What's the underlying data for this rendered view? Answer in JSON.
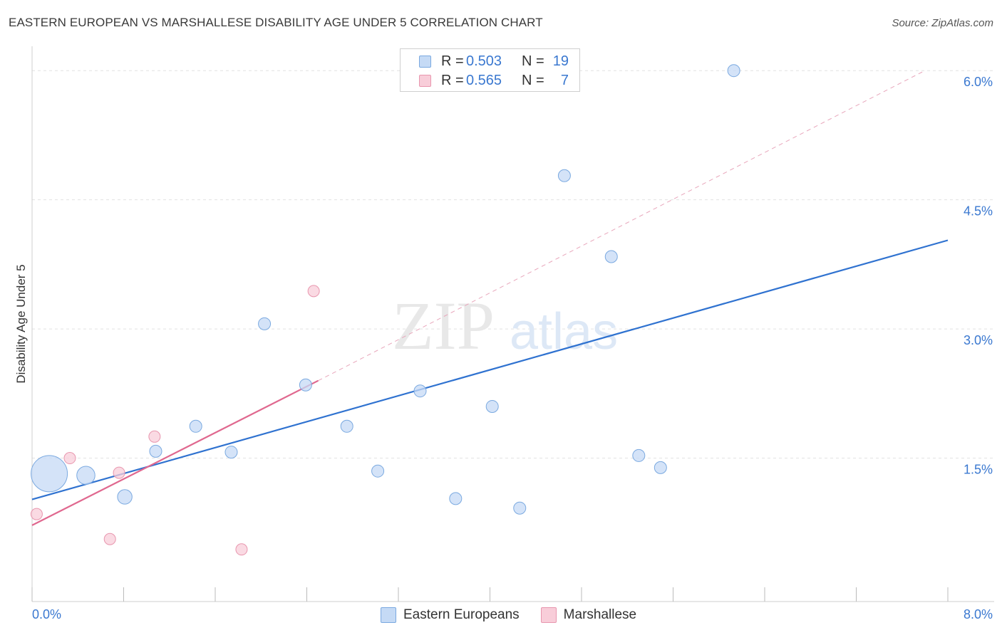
{
  "title": "EASTERN EUROPEAN VS MARSHALLESE DISABILITY AGE UNDER 5 CORRELATION CHART",
  "source": "Source: ZipAtlas.com",
  "watermark": {
    "part1": "ZIP",
    "part2": "atlas"
  },
  "legend_top": [
    {
      "r_label": "R =",
      "r_value": "0.503",
      "n_label": "N =",
      "n_value": "19"
    },
    {
      "r_label": "R =",
      "r_value": "0.565",
      "n_label": "N =",
      "n_value": "7"
    }
  ],
  "legend_bottom": [
    {
      "label": "Eastern Europeans"
    },
    {
      "label": "Marshallese"
    }
  ],
  "colors": {
    "blue_fill": "#c5daf5",
    "blue_stroke": "#7aa9e0",
    "blue_line": "#2f72d0",
    "pink_fill": "#f8cdd9",
    "pink_stroke": "#e896ae",
    "pink_line": "#e0688f",
    "tick_text": "#3a78d0",
    "grid": "#e2e2e2"
  },
  "chart_data": {
    "type": "scatter",
    "title": "EASTERN EUROPEAN VS MARSHALLESE DISABILITY AGE UNDER 5 CORRELATION CHART",
    "xlabel": "",
    "ylabel": "Disability Age Under 5",
    "xlim": [
      0,
      8
    ],
    "ylim": [
      0,
      6.2
    ],
    "x_tick_labels": [
      "0.0%",
      "8.0%"
    ],
    "y_ticks": [
      1.5,
      3.0,
      4.5,
      6.0
    ],
    "y_tick_labels": [
      "1.5%",
      "3.0%",
      "4.5%",
      "6.0%"
    ],
    "grid": true,
    "legend_position": "top-center",
    "series": [
      {
        "name": "Eastern Europeans",
        "points": [
          {
            "x": 0.15,
            "y": 1.32,
            "size": 3
          },
          {
            "x": 0.47,
            "y": 1.3,
            "size": 1.5
          },
          {
            "x": 0.81,
            "y": 1.05,
            "size": 1.2
          },
          {
            "x": 1.08,
            "y": 1.58,
            "size": 1
          },
          {
            "x": 1.43,
            "y": 1.87,
            "size": 1
          },
          {
            "x": 1.74,
            "y": 1.57,
            "size": 1
          },
          {
            "x": 2.03,
            "y": 3.06,
            "size": 1
          },
          {
            "x": 2.39,
            "y": 2.35,
            "size": 1
          },
          {
            "x": 2.75,
            "y": 1.87,
            "size": 1
          },
          {
            "x": 3.02,
            "y": 1.35,
            "size": 1
          },
          {
            "x": 3.39,
            "y": 2.28,
            "size": 1
          },
          {
            "x": 3.7,
            "y": 1.03,
            "size": 1
          },
          {
            "x": 4.02,
            "y": 2.1,
            "size": 1
          },
          {
            "x": 4.26,
            "y": 0.92,
            "size": 1
          },
          {
            "x": 4.65,
            "y": 4.78,
            "size": 1
          },
          {
            "x": 5.06,
            "y": 3.84,
            "size": 1
          },
          {
            "x": 5.3,
            "y": 1.53,
            "size": 1
          },
          {
            "x": 5.49,
            "y": 1.39,
            "size": 1
          },
          {
            "x": 6.13,
            "y": 6.0,
            "size": 1
          }
        ],
        "trend": {
          "x0": 0.0,
          "y0": 1.02,
          "x1": 8.0,
          "y1": 4.03
        }
      },
      {
        "name": "Marshallese",
        "points": [
          {
            "x": 0.04,
            "y": 0.85,
            "size": 1
          },
          {
            "x": 0.33,
            "y": 1.5,
            "size": 1
          },
          {
            "x": 0.68,
            "y": 0.56,
            "size": 1
          },
          {
            "x": 0.76,
            "y": 1.33,
            "size": 1
          },
          {
            "x": 1.07,
            "y": 1.75,
            "size": 1
          },
          {
            "x": 1.83,
            "y": 0.44,
            "size": 1
          },
          {
            "x": 2.46,
            "y": 3.44,
            "size": 1
          }
        ],
        "trend": {
          "x0": 0.0,
          "y0": 0.72,
          "x1": 2.5,
          "y1": 2.4
        },
        "trend_extension": {
          "x0": 2.5,
          "y0": 2.4,
          "x1": 7.8,
          "y1": 6.0
        }
      }
    ]
  }
}
